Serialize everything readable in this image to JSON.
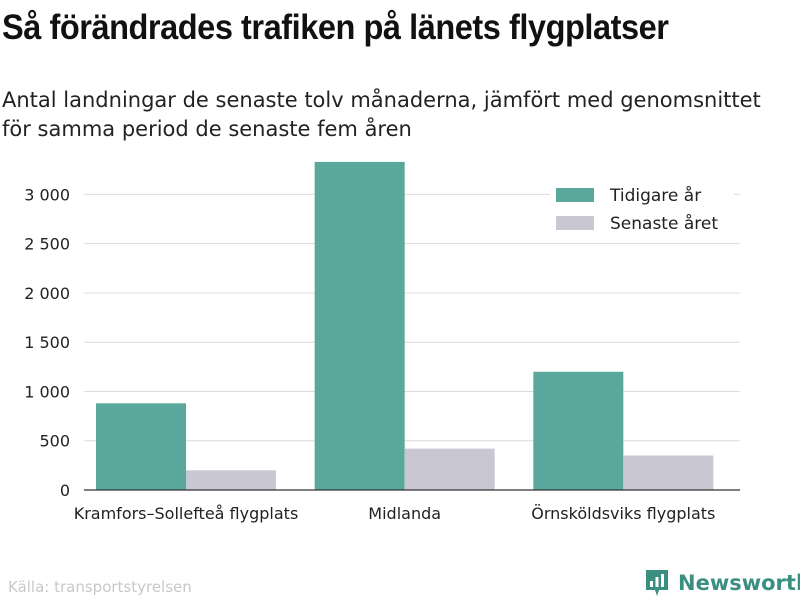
{
  "header": {
    "title": "Så förändrades trafiken på länets flygplatser",
    "subtitle": "Antal landningar de senaste tolv månaderna, jämfört med genomsnittet för samma period de senaste fem åren"
  },
  "footer": {
    "source": "Källa: transportstyrelsen",
    "brand": "Newsworthy",
    "brand_icon": "bar-chart-logo-icon"
  },
  "chart_data": {
    "type": "bar",
    "categories": [
      "Kramfors–Sollefteå flygplats",
      "Midlanda",
      "Örnsköldsviks flygplats"
    ],
    "series": [
      {
        "name": "Tidigare år",
        "values": [
          880,
          3330,
          1200
        ],
        "color": "#5aa89b"
      },
      {
        "name": "Senaste året",
        "values": [
          200,
          420,
          350
        ],
        "color": "#c8c7d2"
      }
    ],
    "yticks": [
      0,
      500,
      1000,
      1500,
      2000,
      2500,
      3000
    ],
    "ytick_labels": [
      "0",
      "500",
      "1 000",
      "1 500",
      "2 000",
      "2 500",
      "3 000"
    ],
    "ylim": [
      0,
      3400
    ],
    "grid": true,
    "legend_position": "top-right"
  }
}
